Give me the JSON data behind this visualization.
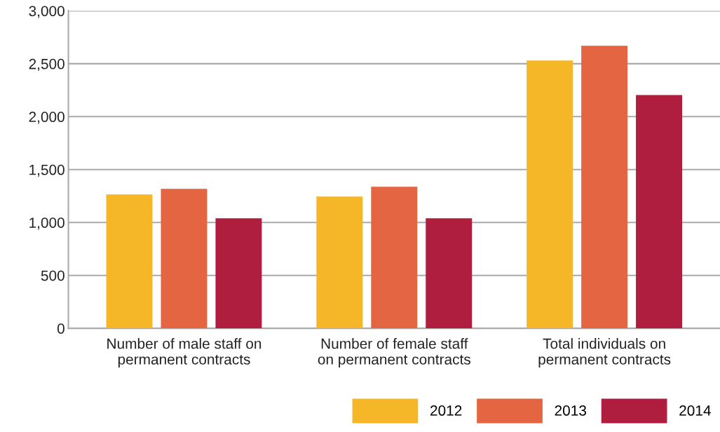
{
  "chart_data": {
    "type": "bar",
    "categories": [
      "Number of male staff on\npermanent contracts",
      "Number of female staff\non permanent contracts",
      "Total individuals on\npermanent contracts"
    ],
    "series": [
      {
        "name": "2012",
        "color": "#f5b728",
        "values": [
          1265,
          1245,
          2530
        ]
      },
      {
        "name": "2013",
        "color": "#e46541",
        "values": [
          1318,
          1338,
          2669
        ]
      },
      {
        "name": "2014",
        "color": "#b01e3f",
        "values": [
          1040,
          1040,
          2205
        ]
      }
    ],
    "ylim": [
      0,
      3000
    ],
    "yticks": [
      {
        "value": 0,
        "label": "0"
      },
      {
        "value": 500,
        "label": "500"
      },
      {
        "value": 1000,
        "label": "1,000"
      },
      {
        "value": 1500,
        "label": "1,500"
      },
      {
        "value": 2000,
        "label": "2,000"
      },
      {
        "value": 2500,
        "label": "2,500"
      },
      {
        "value": 3000,
        "label": "3,000"
      }
    ],
    "grid": "y",
    "legend": "bottom right"
  }
}
